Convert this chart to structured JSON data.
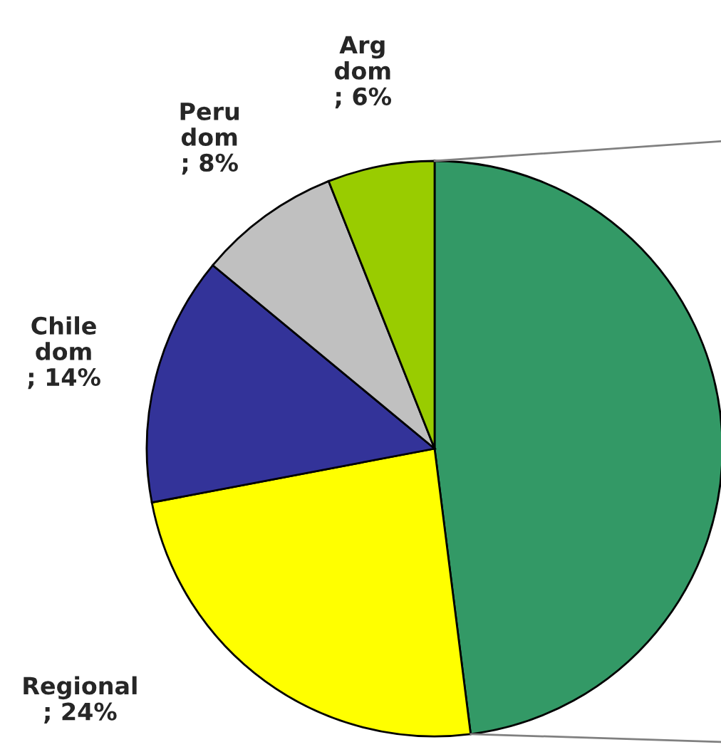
{
  "chart_data": {
    "type": "pie",
    "categories": [
      null,
      "Regional",
      "Chile dom",
      "Peru dom",
      "Arg dom"
    ],
    "values": [
      48,
      24,
      14,
      8,
      6
    ],
    "colors": [
      "#339966",
      "#ffff00",
      "#333399",
      "#c0c0c0",
      "#99cc00"
    ],
    "value_labels": [
      null,
      "; 24%",
      "; 14%",
      "; 8%",
      "; 6%"
    ]
  }
}
